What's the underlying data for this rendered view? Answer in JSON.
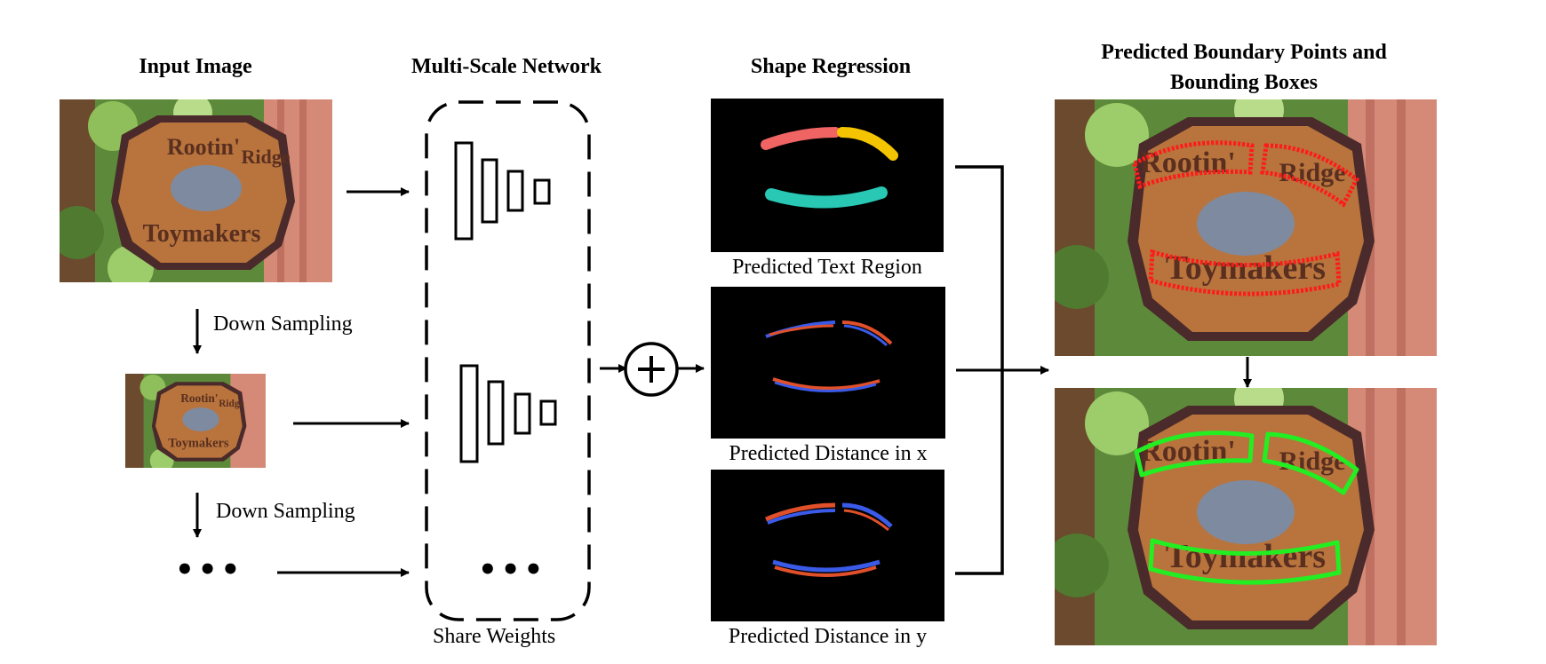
{
  "headings": {
    "input": "Input Image",
    "network": "Multi-Scale Network",
    "regression": "Shape Regression",
    "output": "Predicted Boundary Points and Bounding Boxes"
  },
  "labels": {
    "down_sampling_1": "Down Sampling",
    "down_sampling_2": "Down Sampling",
    "share_weights": "Share Weights",
    "text_region": "Predicted Text Region",
    "distance_x": "Predicted Distance in x",
    "distance_y": "Predicted Distance in y",
    "ellipsis": "•••"
  },
  "sign_text": {
    "top_left": "Rootin'",
    "top_right": "Ridge",
    "bottom": "Toymakers"
  },
  "colors": {
    "boundary_points": "#ff1a1a",
    "bounding_boxes": "#22ee22",
    "region_red": "#f06464",
    "region_yellow": "#f5c400",
    "region_teal": "#28c8b4",
    "distance_red": "#e0502a",
    "distance_blue": "#3a5ae8"
  }
}
